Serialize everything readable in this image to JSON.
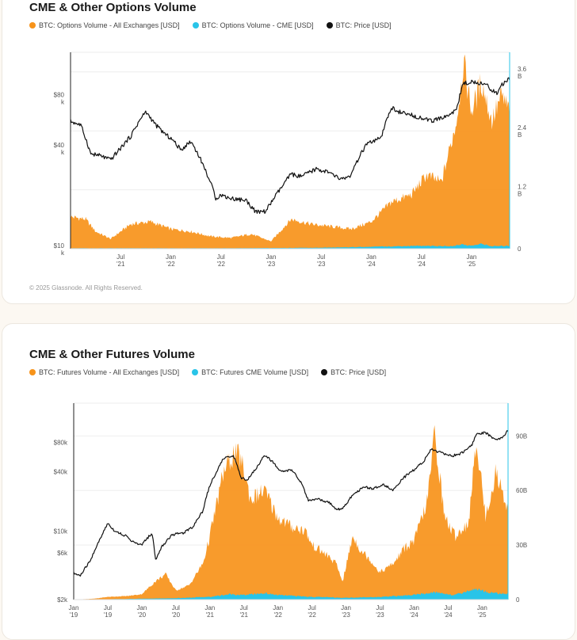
{
  "charts": [
    {
      "title": "CME & Other Options Volume",
      "legend": [
        {
          "label": "BTC: Options Volume - All Exchanges [USD]",
          "color": "#f7931a"
        },
        {
          "label": "BTC: Options Volume - CME [USD]",
          "color": "#29c4e8"
        },
        {
          "label": "BTC: Price [USD]",
          "color": "#111111"
        }
      ],
      "copyright": "© 2025 Glassnode. All Rights Reserved."
    },
    {
      "title": "CME & Other Futures Volume",
      "legend": [
        {
          "label": "BTC: Futures Volume - All Exchanges [USD]",
          "color": "#f7931a"
        },
        {
          "label": "BTC: Futures CME Volume [USD]",
          "color": "#29c4e8"
        },
        {
          "label": "BTC: Price [USD]",
          "color": "#111111"
        }
      ]
    }
  ],
  "chart_data": [
    {
      "type": "area",
      "title": "CME & Other Options Volume",
      "x_ticks": [
        {
          "label": "Jul\n'21",
          "t": 2021.5
        },
        {
          "label": "Jan\n'22",
          "t": 2022.0
        },
        {
          "label": "Jul\n'22",
          "t": 2022.5
        },
        {
          "label": "Jan\n'23",
          "t": 2023.0
        },
        {
          "label": "Jul\n'23",
          "t": 2023.5
        },
        {
          "label": "Jan\n'24",
          "t": 2024.0
        },
        {
          "label": "Jul\n'24",
          "t": 2024.5
        },
        {
          "label": "Jan\n'25",
          "t": 2025.0
        }
      ],
      "xlim": [
        2021.0,
        2025.38
      ],
      "y_left_ticks": [
        {
          "label": "$80\nk",
          "v": 80000
        },
        {
          "label": "$40\nk",
          "v": 40000
        },
        {
          "label": "$10\nk",
          "v": 10000
        }
      ],
      "y_left_scale": "log",
      "y_left_lim": [
        10000,
        150000
      ],
      "y_right_ticks": [
        {
          "label": "3.6\nB",
          "v": 3.6
        },
        {
          "label": "2.4\nB",
          "v": 2.4
        },
        {
          "label": "1.2\nB",
          "v": 1.2
        },
        {
          "label": "0",
          "v": 0
        }
      ],
      "y_right_lim": [
        0,
        4.0
      ],
      "series": [
        {
          "name": "BTC: Options Volume - All Exchanges [USD]",
          "color": "#f7931a",
          "axis": "right",
          "x": [
            2021.0,
            2021.15,
            2021.25,
            2021.4,
            2021.6,
            2021.8,
            2022.0,
            2022.2,
            2022.4,
            2022.6,
            2022.8,
            2023.0,
            2023.2,
            2023.4,
            2023.6,
            2023.8,
            2024.0,
            2024.2,
            2024.4,
            2024.55,
            2024.7,
            2024.85,
            2024.92,
            2025.0,
            2025.1,
            2025.2,
            2025.3,
            2025.38
          ],
          "values": [
            0.65,
            0.6,
            0.35,
            0.2,
            0.5,
            0.55,
            0.4,
            0.35,
            0.25,
            0.22,
            0.3,
            0.15,
            0.6,
            0.5,
            0.45,
            0.4,
            0.55,
            0.95,
            1.1,
            1.5,
            1.35,
            2.6,
            3.8,
            2.8,
            3.4,
            2.6,
            3.1,
            2.8
          ]
        },
        {
          "name": "BTC: Options Volume - CME [USD]",
          "color": "#29c4e8",
          "axis": "right",
          "x": [
            2021.0,
            2022.5,
            2023.0,
            2023.5,
            2024.0,
            2024.5,
            2024.8,
            2024.9,
            2025.0,
            2025.1,
            2025.2,
            2025.38
          ],
          "values": [
            0.01,
            0.01,
            0.015,
            0.02,
            0.04,
            0.06,
            0.05,
            0.09,
            0.06,
            0.1,
            0.05,
            0.06
          ]
        },
        {
          "name": "BTC: Price [USD]",
          "color": "#111111",
          "axis": "left",
          "x": [
            2021.0,
            2021.1,
            2021.2,
            2021.3,
            2021.4,
            2021.5,
            2021.6,
            2021.7,
            2021.75,
            2021.85,
            2021.95,
            2022.0,
            2022.1,
            2022.2,
            2022.35,
            2022.45,
            2022.5,
            2022.6,
            2022.75,
            2022.85,
            2022.95,
            2023.1,
            2023.2,
            2023.3,
            2023.45,
            2023.55,
            2023.7,
            2023.8,
            2023.95,
            2024.1,
            2024.2,
            2024.3,
            2024.45,
            2024.6,
            2024.75,
            2024.85,
            2024.92,
            2025.05,
            2025.15,
            2025.25,
            2025.3,
            2025.38
          ],
          "values": [
            58000,
            55000,
            37000,
            36000,
            34000,
            40000,
            47000,
            60000,
            66000,
            55000,
            48000,
            46000,
            39000,
            44000,
            29000,
            20000,
            21000,
            20000,
            19500,
            16500,
            16800,
            23000,
            28000,
            27000,
            30000,
            29000,
            26000,
            27500,
            42000,
            46000,
            70000,
            65000,
            62000,
            58000,
            62000,
            68000,
            98000,
            100000,
            95000,
            85000,
            95000,
            105000
          ]
        }
      ]
    },
    {
      "type": "area",
      "title": "CME & Other Futures Volume",
      "x_ticks": [
        {
          "label": "Jan\n'19",
          "t": 2019.0
        },
        {
          "label": "Jul\n'19",
          "t": 2019.5
        },
        {
          "label": "Jan\n'20",
          "t": 2020.0
        },
        {
          "label": "Jul\n'20",
          "t": 2020.5
        },
        {
          "label": "Jan\n'21",
          "t": 2021.0
        },
        {
          "label": "Jul\n'21",
          "t": 2021.5
        },
        {
          "label": "Jan\n'22",
          "t": 2022.0
        },
        {
          "label": "Jul\n'22",
          "t": 2022.5
        },
        {
          "label": "Jan\n'23",
          "t": 2023.0
        },
        {
          "label": "Jul\n'23",
          "t": 2023.5
        },
        {
          "label": "Jan\n'24",
          "t": 2024.0
        },
        {
          "label": "Jul\n'24",
          "t": 2024.5
        },
        {
          "label": "Jan\n'25",
          "t": 2025.0
        }
      ],
      "xlim": [
        2019.0,
        2025.38
      ],
      "y_left_ticks": [
        {
          "label": "$80k",
          "v": 80000
        },
        {
          "label": "$40k",
          "v": 40000
        },
        {
          "label": "$10k",
          "v": 10000
        },
        {
          "label": "$6k",
          "v": 6000
        },
        {
          "label": "$2k",
          "v": 2000
        }
      ],
      "y_left_scale": "log",
      "y_left_lim": [
        2000,
        200000
      ],
      "y_right_ticks": [
        {
          "label": "90B",
          "v": 90
        },
        {
          "label": "60B",
          "v": 60
        },
        {
          "label": "30B",
          "v": 30
        },
        {
          "label": "0",
          "v": 0
        }
      ],
      "y_right_lim": [
        0,
        108
      ],
      "series": [
        {
          "name": "BTC: Futures Volume - All Exchanges [USD]",
          "color": "#f7931a",
          "axis": "right",
          "x": [
            2019.0,
            2019.3,
            2019.5,
            2019.8,
            2020.0,
            2020.2,
            2020.35,
            2020.5,
            2020.7,
            2020.9,
            2021.0,
            2021.2,
            2021.35,
            2021.45,
            2021.6,
            2021.8,
            2022.0,
            2022.2,
            2022.4,
            2022.5,
            2022.7,
            2022.85,
            2022.95,
            2023.1,
            2023.2,
            2023.35,
            2023.5,
            2023.7,
            2023.85,
            2024.0,
            2024.2,
            2024.3,
            2024.45,
            2024.6,
            2024.8,
            2024.92,
            2025.05,
            2025.2,
            2025.38
          ],
          "values": [
            0,
            0.5,
            1.5,
            2,
            3,
            10,
            14,
            5,
            8,
            20,
            35,
            70,
            80,
            78,
            55,
            60,
            45,
            40,
            38,
            30,
            25,
            20,
            10,
            35,
            28,
            22,
            15,
            20,
            28,
            32,
            55,
            92,
            45,
            35,
            42,
            88,
            45,
            70,
            50
          ]
        },
        {
          "name": "BTC: Futures CME Volume [USD]",
          "color": "#29c4e8",
          "axis": "right",
          "x": [
            2019.0,
            2019.5,
            2020.0,
            2020.5,
            2021.0,
            2021.3,
            2021.5,
            2021.8,
            2022.0,
            2022.5,
            2023.0,
            2023.5,
            2024.0,
            2024.3,
            2024.6,
            2024.9,
            2025.1,
            2025.38
          ],
          "values": [
            0.1,
            0.2,
            0.5,
            0.8,
            1.5,
            3,
            2.5,
            3.5,
            2.5,
            1.5,
            1,
            1.5,
            2.5,
            4,
            2.5,
            6,
            4,
            3
          ]
        },
        {
          "name": "BTC: Price [USD]",
          "color": "#111111",
          "axis": "left",
          "x": [
            2019.0,
            2019.1,
            2019.25,
            2019.4,
            2019.5,
            2019.6,
            2019.75,
            2019.9,
            2020.0,
            2020.15,
            2020.2,
            2020.3,
            2020.45,
            2020.6,
            2020.75,
            2020.9,
            2021.0,
            2021.1,
            2021.2,
            2021.35,
            2021.45,
            2021.55,
            2021.7,
            2021.8,
            2021.95,
            2022.05,
            2022.2,
            2022.35,
            2022.45,
            2022.6,
            2022.75,
            2022.85,
            2022.95,
            2023.1,
            2023.25,
            2023.4,
            2023.55,
            2023.7,
            2023.85,
            2024.0,
            2024.15,
            2024.25,
            2024.4,
            2024.55,
            2024.7,
            2024.85,
            2024.92,
            2025.05,
            2025.2,
            2025.3,
            2025.38
          ],
          "values": [
            3700,
            3500,
            5000,
            8500,
            12000,
            10000,
            9000,
            7500,
            7200,
            9500,
            5000,
            7000,
            9200,
            9500,
            11000,
            16000,
            29000,
            40000,
            55000,
            58000,
            35000,
            33000,
            45000,
            60000,
            48000,
            40000,
            42000,
            30000,
            20000,
            21000,
            19500,
            16500,
            16800,
            23000,
            28000,
            27000,
            29500,
            26000,
            35000,
            42000,
            52000,
            68000,
            62000,
            58000,
            62000,
            75000,
            98000,
            100000,
            85000,
            90000,
            105000
          ]
        }
      ]
    }
  ]
}
